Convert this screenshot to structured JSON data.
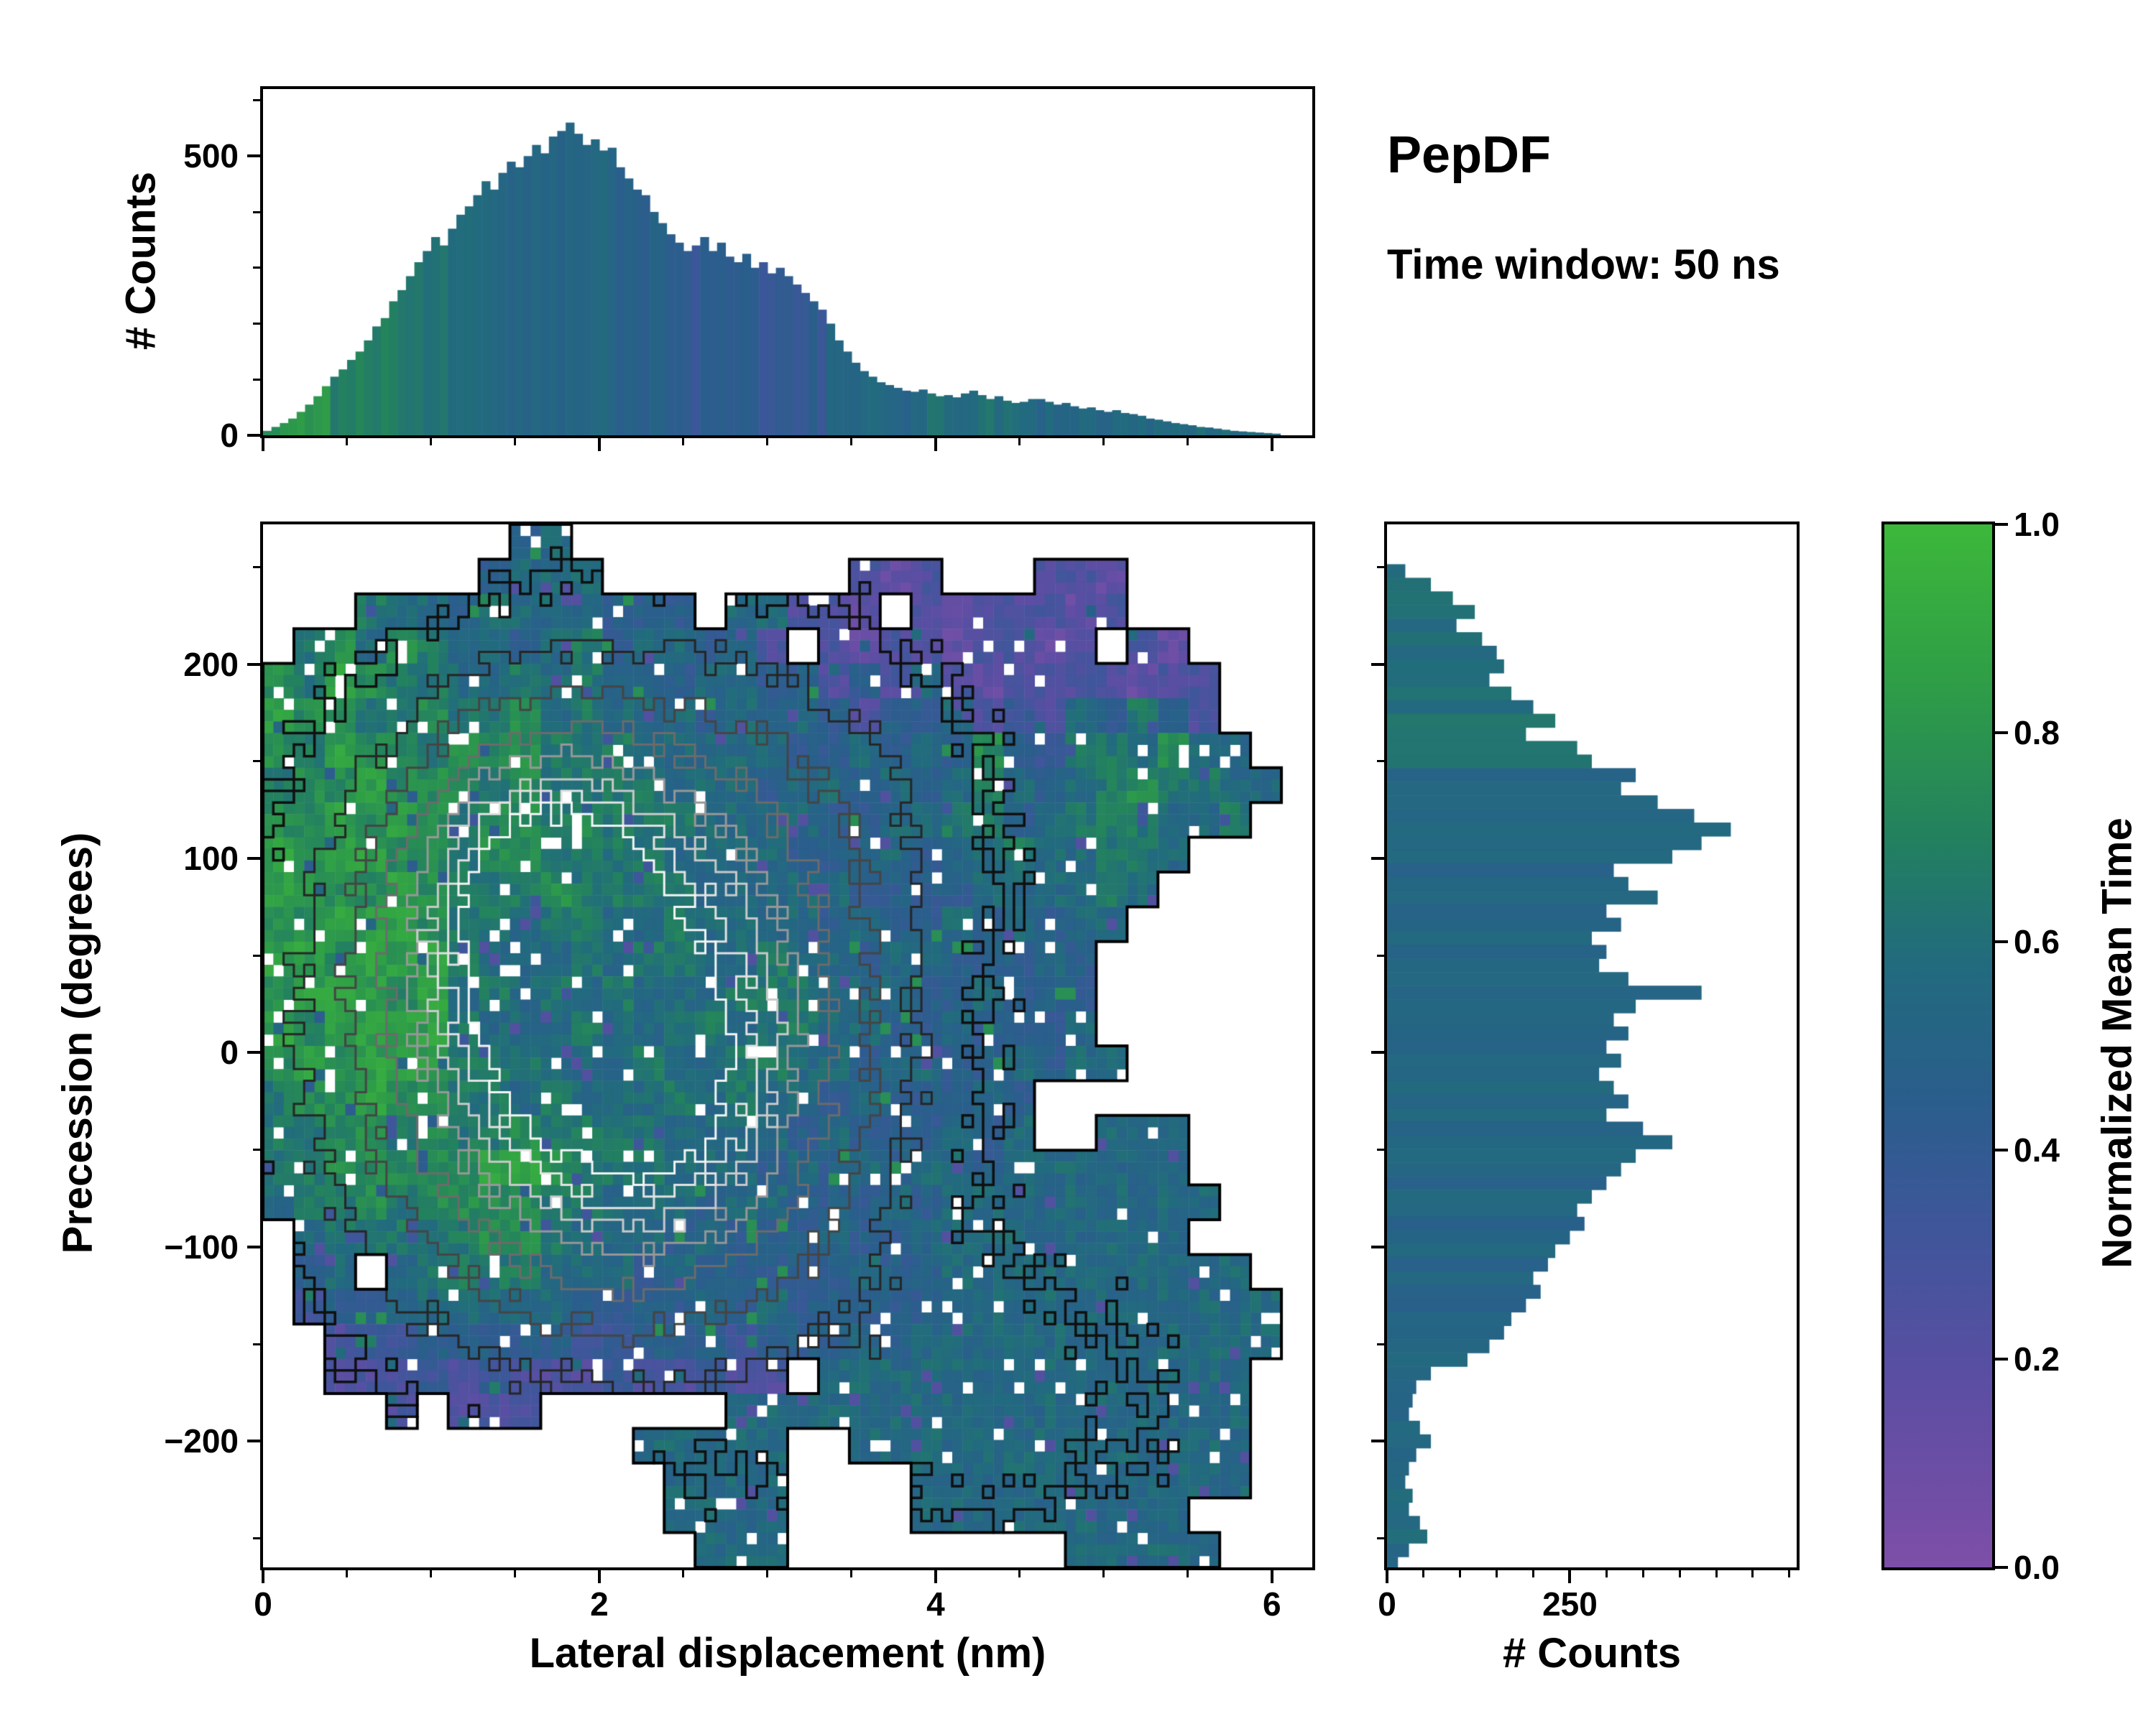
{
  "annotations": {
    "title": "PepDF",
    "subtitle": "Time window: 50 ns"
  },
  "chart_data": {
    "type": "heatmap",
    "description": "2D histogram of Precession vs Lateral displacement colored by Normalized Mean Time, with marginal count histograms and density contours",
    "colormap": {
      "label": "Normalized Mean Time",
      "stops": [
        [
          0,
          "#7e4fa8"
        ],
        [
          0.18,
          "#5b4ea3"
        ],
        [
          0.32,
          "#40569b"
        ],
        [
          0.45,
          "#2a5e8c"
        ],
        [
          0.58,
          "#226b7e"
        ],
        [
          0.7,
          "#23815f"
        ],
        [
          0.85,
          "#2f9e47"
        ],
        [
          1,
          "#3db83b"
        ]
      ],
      "ticks": [
        {
          "v": 0,
          "label": "0.0"
        },
        {
          "v": 0.2,
          "label": "0.2"
        },
        {
          "v": 0.4,
          "label": "0.4"
        },
        {
          "v": 0.6,
          "label": "0.6"
        },
        {
          "v": 0.8,
          "label": "0.8"
        },
        {
          "v": 1,
          "label": "1.0"
        }
      ]
    },
    "heatmap": {
      "xlabel": "Lateral displacement (nm)",
      "ylabel": "Precession (degrees)",
      "xlim": [
        0,
        6.24
      ],
      "ylim": [
        -265,
        272
      ],
      "xticks": [
        {
          "v": 0,
          "label": "0"
        },
        {
          "v": 2,
          "label": "2"
        },
        {
          "v": 4,
          "label": "4"
        },
        {
          "v": 6,
          "label": "6"
        }
      ],
      "yticks": [
        {
          "v": 200,
          "label": "200"
        },
        {
          "v": 100,
          "label": "100"
        },
        {
          "v": 0,
          "label": "0"
        },
        {
          "v": -100,
          "label": "−100"
        },
        {
          "v": -200,
          "label": "−200"
        }
      ],
      "x_minor_step": 0.5,
      "y_minor_step": 50,
      "value_scale": "each digit d means normalized mean time (d+0.5)/10, '.' = no data",
      "grid_rows": [
        "........45........................",
        ".......4555........212...221......",
        "...65546555444.55221.2122212......",
        ".6757655456455452.212212212.21....",
        "7687665565654455442425212222122...",
        "8776676675655545454244523254642...",
        "76877677766655555445454743665755..",
        "677877767666655545545456545676655.",
        "77878767767666555544556645666556..",
        "878877677666655554455455655665....",
        "88778766676666555554444555565.....",
        "7788876656655655554544545455......",
        "887888655565665565545544454.......",
        "788878565656555666555445444.......",
        "878888655565566566554454445.......",
        "7878886665556556655455445455......",
        "6778776656555656554544454.........",
        "6677676676666555545444545..555....",
        "667777788766655545454554555555....",
        "5667677776655545544454555555555...",
        ".56666677655545444544555555555....",
        ".45.5666655545444445445555555555..",
        ".34455555544445454444455555555555.",
        "..2334444433444344454555555555555.",
        "..222323222322322.55555555555555..",
        "....2.222......55555555555555555..",
        "............55555..5555555555555..",
        ".............5555....55555555555..",
        ".............5555....555555555....",
        "..............555.........55555..."
      ],
      "density_peaks": [
        {
          "x": 1.85,
          "y": 10,
          "sx": 1.0,
          "sy": 105,
          "amp": 1.0
        },
        {
          "x": 1.55,
          "y": 95,
          "sx": 0.55,
          "sy": 55,
          "amp": 0.5
        },
        {
          "x": 2.6,
          "y": -35,
          "sx": 0.8,
          "sy": 70,
          "amp": 0.45
        },
        {
          "x": 3.0,
          "y": 120,
          "sx": 0.9,
          "sy": 70,
          "amp": 0.3
        },
        {
          "x": 4.3,
          "y": -180,
          "sx": 0.9,
          "sy": 55,
          "amp": 0.2
        }
      ],
      "contour_levels": [
        {
          "level": 0.12,
          "color": "#101010",
          "width": 3.5
        },
        {
          "level": 0.28,
          "color": "#262626",
          "width": 3
        },
        {
          "level": 0.45,
          "color": "#454545",
          "width": 3
        },
        {
          "level": 0.62,
          "color": "#6b6b6b",
          "width": 3
        },
        {
          "level": 0.78,
          "color": "#979797",
          "width": 3
        },
        {
          "level": 0.9,
          "color": "#c9c9c9",
          "width": 3
        },
        {
          "level": 1.0,
          "color": "#e2e2e2",
          "width": 3
        },
        {
          "level": 1.1,
          "color": "#f5f5f5",
          "width": 3
        }
      ]
    },
    "top_hist": {
      "ylabel": "# Counts",
      "bin_start": 0,
      "bin_width": 0.05,
      "ylim": [
        0,
        620
      ],
      "yticks": [
        {
          "v": 0,
          "label": "0"
        },
        {
          "v": 500,
          "label": "500"
        }
      ],
      "y_minor_step": 100,
      "values": [
        8,
        15,
        22,
        30,
        42,
        55,
        70,
        88,
        105,
        118,
        135,
        150,
        170,
        195,
        210,
        240,
        260,
        285,
        310,
        330,
        355,
        340,
        370,
        395,
        410,
        430,
        455,
        440,
        470,
        490,
        480,
        500,
        520,
        505,
        535,
        545,
        560,
        540,
        520,
        530,
        510,
        515,
        480,
        460,
        440,
        430,
        400,
        380,
        360,
        345,
        330,
        340,
        355,
        330,
        345,
        320,
        310,
        325,
        300,
        310,
        290,
        300,
        285,
        270,
        255,
        240,
        225,
        200,
        170,
        150,
        130,
        115,
        105,
        95,
        90,
        85,
        80,
        78,
        82,
        75,
        70,
        72,
        68,
        75,
        80,
        72,
        65,
        70,
        62,
        58,
        60,
        65,
        65,
        60,
        55,
        58,
        52,
        48,
        50,
        45,
        42,
        45,
        40,
        38,
        35,
        30,
        28,
        25,
        22,
        20,
        18,
        15,
        14,
        12,
        10,
        8,
        7,
        6,
        5,
        4,
        3
      ],
      "color_segments": [
        {
          "from": 0,
          "to": 0.4,
          "v": 0.8
        },
        {
          "from": 0.4,
          "to": 0.8,
          "v": 0.68
        },
        {
          "from": 0.8,
          "to": 1.3,
          "v": 0.6
        },
        {
          "from": 1.3,
          "to": 2.1,
          "v": 0.53
        },
        {
          "from": 2.1,
          "to": 2.5,
          "v": 0.48
        },
        {
          "from": 2.5,
          "to": 3.35,
          "v": 0.4
        },
        {
          "from": 3.35,
          "to": 3.9,
          "v": 0.52
        },
        {
          "from": 3.9,
          "to": 4.5,
          "v": 0.6
        },
        {
          "from": 4.5,
          "to": 5.1,
          "v": 0.52
        },
        {
          "from": 5.1,
          "to": 6.3,
          "v": 0.56
        }
      ]
    },
    "right_hist": {
      "xlabel": "# Counts",
      "xlim": [
        0,
        560
      ],
      "xticks": [
        {
          "v": 0,
          "label": "0"
        },
        {
          "v": 250,
          "label": "250"
        }
      ],
      "x_minor_step": 50,
      "bin_start": 255,
      "bin_step": -7,
      "values": [
        0,
        25,
        60,
        90,
        120,
        95,
        130,
        150,
        160,
        140,
        170,
        200,
        230,
        190,
        260,
        280,
        340,
        320,
        370,
        420,
        470,
        430,
        390,
        310,
        330,
        370,
        300,
        320,
        280,
        300,
        290,
        330,
        430,
        340,
        310,
        330,
        300,
        320,
        290,
        310,
        330,
        300,
        350,
        390,
        340,
        320,
        300,
        280,
        260,
        270,
        250,
        230,
        220,
        200,
        210,
        190,
        170,
        160,
        140,
        110,
        60,
        40,
        35,
        30,
        45,
        60,
        40,
        30,
        25,
        35,
        30,
        45,
        55,
        30,
        15
      ],
      "color_segments": [
        {
          "from": 150,
          "to": 272,
          "v": 0.6
        },
        {
          "from": -150,
          "to": 150,
          "v": 0.52
        },
        {
          "from": -266,
          "to": -150,
          "v": 0.55
        }
      ]
    }
  }
}
